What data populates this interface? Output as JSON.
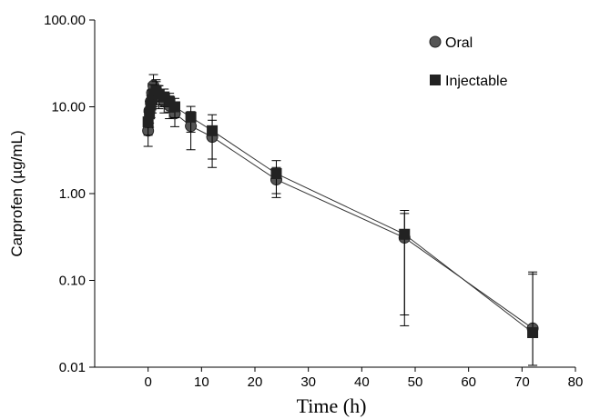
{
  "chart_data": {
    "type": "scatter",
    "title": "",
    "xlabel": "Time (h)",
    "ylabel": "Carprofen (µg/mL)",
    "xlim": [
      -10,
      80
    ],
    "ylim": [
      0.01,
      100
    ],
    "yscale": "log",
    "xticks": [
      0,
      10,
      20,
      30,
      40,
      50,
      60,
      70,
      80
    ],
    "yticks": [
      0.01,
      0.1,
      1,
      10,
      100
    ],
    "xtick_labels": [
      "0",
      "10",
      "20",
      "30",
      "40",
      "50",
      "60",
      "70",
      "80"
    ],
    "ytick_labels": [
      "0.01",
      "0.10",
      "1.00",
      "10.00",
      "100.00"
    ],
    "grid": false,
    "legend_position": "top-right",
    "series": [
      {
        "name": "Oral",
        "marker": "circle",
        "color": "#555555",
        "x": [
          0,
          0.25,
          0.5,
          0.75,
          1,
          1.5,
          2,
          3,
          4,
          5,
          8,
          12,
          24,
          48,
          72
        ],
        "y": [
          5.3,
          9,
          11.5,
          14.5,
          17.5,
          15.5,
          13.5,
          11.5,
          10.3,
          8.4,
          6.0,
          4.5,
          1.45,
          0.31,
          0.028
        ],
        "err": [
          1.8,
          2.5,
          3,
          4,
          6,
          5,
          4,
          3,
          3,
          2.5,
          2.8,
          2.5,
          0.55,
          0.28,
          0.09
        ]
      },
      {
        "name": "Injectable",
        "marker": "square",
        "color": "#222222",
        "x": [
          0,
          0.25,
          0.5,
          0.75,
          1,
          1.5,
          2,
          3,
          4,
          5,
          8,
          12,
          24,
          48,
          72
        ],
        "y": [
          6.7,
          8.3,
          10.5,
          12,
          14,
          15.5,
          14,
          13,
          11.5,
          10,
          7.6,
          5.3,
          1.7,
          0.34,
          0.025
        ],
        "err": [
          2,
          2.5,
          3,
          3.5,
          4,
          4,
          3.5,
          3,
          2.8,
          2.5,
          2.5,
          2.8,
          0.7,
          0.3,
          0.1
        ]
      }
    ]
  }
}
